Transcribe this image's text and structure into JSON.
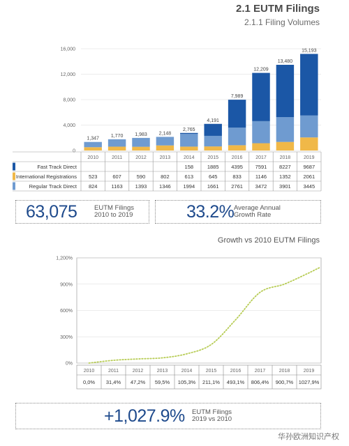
{
  "header": {
    "title": "2.1 EUTM Filings",
    "subtitle": "2.1.1 Filing Volumes"
  },
  "chart_data": [
    {
      "type": "bar",
      "stacked": true,
      "categories": [
        "2010",
        "2011",
        "2012",
        "2013",
        "2014",
        "2015",
        "2016",
        "2017",
        "2018",
        "2019"
      ],
      "series": [
        {
          "name": "Fast Track Direct",
          "color": "#1b57a6",
          "values": [
            null,
            null,
            null,
            null,
            158,
            1885,
            4395,
            7591,
            8227,
            9687
          ]
        },
        {
          "name": "International Registrations",
          "color": "#f0b848",
          "values": [
            523,
            607,
            590,
            802,
            613,
            645,
            833,
            1146,
            1352,
            2061
          ]
        },
        {
          "name": "Regular Track Direct",
          "color": "#6f9bd0",
          "values": [
            824,
            1163,
            1393,
            1346,
            1994,
            1661,
            2761,
            3472,
            3901,
            3445
          ]
        }
      ],
      "totals": [
        "1,347",
        "1,770",
        "1,983",
        "2,148",
        "2,765",
        "4,191",
        "7,989",
        "12,209",
        "13,480",
        "15,193"
      ],
      "y_ticks": [
        "0",
        "4,000",
        "8,000",
        "12,000",
        "16,000"
      ],
      "ylim": [
        0,
        16000
      ]
    },
    {
      "type": "line",
      "title": "Growth vs 2010 EUTM Filings",
      "categories": [
        "2010",
        "2011",
        "2012",
        "2013",
        "2014",
        "2015",
        "2016",
        "2017",
        "2018",
        "2019"
      ],
      "values": [
        0.0,
        31.4,
        47.2,
        59.5,
        105.3,
        211.1,
        493.1,
        806.4,
        900.7,
        1027.9
      ],
      "value_labels": [
        "0,0%",
        "31,4%",
        "47,2%",
        "59,5%",
        "105,3%",
        "211,1%",
        "493,1%",
        "806,4%",
        "900,7%",
        "1027,9%"
      ],
      "y_ticks": [
        "0%",
        "300%",
        "600%",
        "900%",
        "1,200%"
      ],
      "ylim": [
        0,
        1200
      ],
      "line_color": "#b7cc55",
      "line_style": "dotted"
    }
  ],
  "kpis": {
    "total_value": "63,075",
    "total_label_1": "EUTM Filings",
    "total_label_2": "2010 to 2019",
    "rate_value": "33.2%",
    "rate_label_1": "Average Annual",
    "rate_label_2": "Growth Rate",
    "growth_value": "+1,027.9%",
    "growth_label_1": "EUTM Filings",
    "growth_label_2": "2019 vs 2010"
  },
  "watermark": "华孙欧洲知识产权",
  "colors": {
    "accent": "#1e4a8c",
    "grid": "#d9d9d9"
  }
}
